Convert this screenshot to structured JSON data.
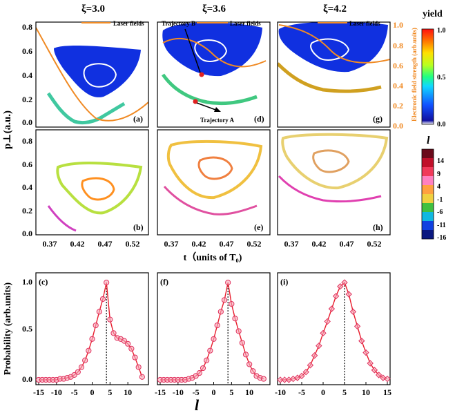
{
  "colors": {
    "laser": "#f08a24",
    "blue": "#1030e0",
    "prob_line": "#e81c2c",
    "marker_fill": "#f6a6b8",
    "marker_edge": "#e0305c",
    "right_axis": "#f08a24"
  },
  "column_titles": [
    "ξ=3.0",
    "ξ=3.6",
    "ξ=4.2"
  ],
  "top_ylabel": "p⊥(a.u.)",
  "mid_xlabel": "t（units of   T₀)",
  "bottom_ylabel": "Probability (arb.units)",
  "bottom_xlabel": "l",
  "right_axis_label": "Electronic field strength (arb.units)",
  "right_axis_ticks": [
    "0.0",
    "0.2",
    "0.4",
    "0.6",
    "0.8",
    "1.0"
  ],
  "yield_colorbar": {
    "title": "yield",
    "ticks": [
      "1.0",
      "0.5",
      "0.0"
    ]
  },
  "l_colorbar": {
    "title": "l",
    "ticks": [
      "14",
      "9",
      "4",
      "-1",
      "-6",
      "-11",
      "-16"
    ]
  },
  "legend_laser": "Laser fields",
  "annotations": {
    "trajectory_a": "Trajectory A",
    "trajectory_b": "Trajectory B"
  },
  "panel_labels": [
    "(a)",
    "(d)",
    "(g)",
    "(b)",
    "(e)",
    "(h)",
    "(c)",
    "(f)",
    "(i)"
  ],
  "top_yticks": [
    "0.0",
    "0.2",
    "0.4",
    "0.6",
    "0.8"
  ],
  "mid_yticks": [
    "0.0",
    "0.2",
    "0.4",
    "0.6",
    "0.8"
  ],
  "t_ticks": [
    "0.37",
    "0.42",
    "0.47",
    "0.52"
  ],
  "prob_yticks": [
    "0.0",
    "0.5",
    "1.0"
  ],
  "chart_data": [
    {
      "type": "line",
      "panel": "(c)",
      "title": "ξ=3.0",
      "xlabel": "l",
      "ylabel": "Probability (arb.units)",
      "xlim": [
        -15,
        15
      ],
      "ylim": [
        -0.05,
        1.1
      ],
      "xticks": [
        "-15",
        "-10",
        "-5",
        "0",
        "5",
        "10"
      ],
      "x": [
        -15,
        -14,
        -13,
        -12,
        -11,
        -10,
        -9,
        -8,
        -7,
        -6,
        -5,
        -4,
        -3,
        -2,
        -1,
        0,
        1,
        2,
        3,
        4,
        5,
        6,
        7,
        8,
        9,
        10,
        11,
        12,
        13,
        14
      ],
      "values": [
        0.0,
        0.0,
        0.0,
        0.0,
        0.0,
        0.0,
        0.01,
        0.01,
        0.02,
        0.03,
        0.05,
        0.08,
        0.13,
        0.2,
        0.3,
        0.42,
        0.56,
        0.7,
        0.83,
        1.0,
        0.62,
        0.48,
        0.43,
        0.42,
        0.4,
        0.37,
        0.32,
        0.23,
        0.13,
        0.03
      ],
      "marker_threshold": 0.1,
      "peak_line_x": 4
    },
    {
      "type": "line",
      "panel": "(f)",
      "title": "ξ=3.6",
      "xlabel": "l",
      "ylabel": "Probability (arb.units)",
      "xlim": [
        -15,
        15
      ],
      "ylim": [
        -0.05,
        1.1
      ],
      "xticks": [
        "-15",
        "-10",
        "-5",
        "0",
        "5",
        "10"
      ],
      "x": [
        -15,
        -14,
        -13,
        -12,
        -11,
        -10,
        -9,
        -8,
        -7,
        -6,
        -5,
        -4,
        -3,
        -2,
        -1,
        0,
        1,
        2,
        3,
        4,
        5,
        6,
        7,
        8,
        9,
        10,
        11,
        12,
        13,
        14
      ],
      "values": [
        0.0,
        0.0,
        0.0,
        0.0,
        0.0,
        0.0,
        0.0,
        0.0,
        0.01,
        0.02,
        0.04,
        0.07,
        0.12,
        0.2,
        0.3,
        0.42,
        0.56,
        0.7,
        0.82,
        1.0,
        0.78,
        0.63,
        0.5,
        0.38,
        0.26,
        0.16,
        0.09,
        0.04,
        0.02,
        0.01
      ],
      "marker_threshold": 0.15,
      "peak_line_x": 4
    },
    {
      "type": "line",
      "panel": "(i)",
      "title": "ξ=4.2",
      "xlabel": "l",
      "ylabel": "Probability (arb.units)",
      "xlim": [
        -10,
        15
      ],
      "ylim": [
        -0.05,
        1.1
      ],
      "xticks": [
        "-10",
        "-5",
        "0",
        "5",
        "10",
        "15"
      ],
      "x": [
        -10,
        -9,
        -8,
        -7,
        -6,
        -5,
        -4,
        -3,
        -2,
        -1,
        0,
        1,
        2,
        3,
        4,
        5,
        6,
        7,
        8,
        9,
        10,
        11,
        12,
        13,
        14,
        15
      ],
      "values": [
        0.0,
        0.0,
        0.0,
        0.01,
        0.02,
        0.04,
        0.08,
        0.15,
        0.25,
        0.35,
        0.48,
        0.6,
        0.73,
        0.86,
        0.96,
        1.0,
        0.88,
        0.7,
        0.55,
        0.4,
        0.28,
        0.17,
        0.1,
        0.05,
        0.02,
        0.01
      ],
      "marker_threshold": 0.0,
      "peak_line_x": 5
    }
  ]
}
